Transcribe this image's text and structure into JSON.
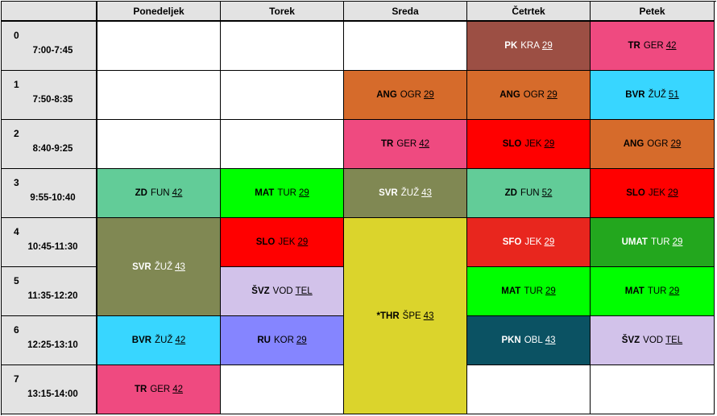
{
  "days": [
    "Ponedeljek",
    "Torek",
    "Sreda",
    "Četrtek",
    "Petek"
  ],
  "periods": [
    {
      "num": "0",
      "time": "7:00-7:45"
    },
    {
      "num": "1",
      "time": "7:50-8:35"
    },
    {
      "num": "2",
      "time": "8:40-9:25"
    },
    {
      "num": "3",
      "time": "9:55-10:40"
    },
    {
      "num": "4",
      "time": "10:45-11:30"
    },
    {
      "num": "5",
      "time": "11:35-12:20"
    },
    {
      "num": "6",
      "time": "12:25-13:10"
    },
    {
      "num": "7",
      "time": "13:15-14:00"
    }
  ],
  "lessons": [
    {
      "subject": "PK",
      "teacher": "KRA",
      "room": "29",
      "day": 3,
      "start": 0,
      "span": 1,
      "color": "#9c4f44",
      "text": "light"
    },
    {
      "subject": "TR",
      "teacher": "GER",
      "room": "42",
      "day": 4,
      "start": 0,
      "span": 1,
      "color": "#ef4a80",
      "text": "dark"
    },
    {
      "subject": "ANG",
      "teacher": "OGR",
      "room": "29",
      "day": 2,
      "start": 1,
      "span": 1,
      "color": "#d66b2b",
      "text": "dark"
    },
    {
      "subject": "ANG",
      "teacher": "OGR",
      "room": "29",
      "day": 3,
      "start": 1,
      "span": 1,
      "color": "#d66b2b",
      "text": "dark"
    },
    {
      "subject": "BVR",
      "teacher": "ŽUŽ",
      "room": "51",
      "day": 4,
      "start": 1,
      "span": 1,
      "color": "#38d6ff",
      "text": "dark"
    },
    {
      "subject": "TR",
      "teacher": "GER",
      "room": "42",
      "day": 2,
      "start": 2,
      "span": 1,
      "color": "#ef4a80",
      "text": "dark"
    },
    {
      "subject": "SLO",
      "teacher": "JEK",
      "room": "29",
      "day": 3,
      "start": 2,
      "span": 1,
      "color": "#ff0000",
      "text": "dark"
    },
    {
      "subject": "ANG",
      "teacher": "OGR",
      "room": "29",
      "day": 4,
      "start": 2,
      "span": 1,
      "color": "#d66b2b",
      "text": "dark"
    },
    {
      "subject": "ZD",
      "teacher": "FUN",
      "room": "42",
      "day": 0,
      "start": 3,
      "span": 1,
      "color": "#62cc98",
      "text": "dark"
    },
    {
      "subject": "MAT",
      "teacher": "TUR",
      "room": "29",
      "day": 1,
      "start": 3,
      "span": 1,
      "color": "#00ff00",
      "text": "dark"
    },
    {
      "subject": "SVR",
      "teacher": "ŽUŽ",
      "room": "43",
      "day": 2,
      "start": 3,
      "span": 1,
      "color": "#808853",
      "text": "light"
    },
    {
      "subject": "ZD",
      "teacher": "FUN",
      "room": "52",
      "day": 3,
      "start": 3,
      "span": 1,
      "color": "#62cc98",
      "text": "dark"
    },
    {
      "subject": "SLO",
      "teacher": "JEK",
      "room": "29",
      "day": 4,
      "start": 3,
      "span": 1,
      "color": "#ff0000",
      "text": "dark"
    },
    {
      "subject": "SVR",
      "teacher": "ŽUŽ",
      "room": "43",
      "day": 0,
      "start": 4,
      "span": 2,
      "color": "#808853",
      "text": "light"
    },
    {
      "subject": "SLO",
      "teacher": "JEK",
      "room": "29",
      "day": 1,
      "start": 4,
      "span": 1,
      "color": "#ff0000",
      "text": "dark"
    },
    {
      "subject": "*THR",
      "teacher": "ŠPE",
      "room": "43",
      "day": 2,
      "start": 4,
      "span": 4,
      "color": "#dbd42c",
      "text": "dark"
    },
    {
      "subject": "SFO",
      "teacher": "JEK",
      "room": "29",
      "day": 3,
      "start": 4,
      "span": 1,
      "color": "#e8261e",
      "text": "light"
    },
    {
      "subject": "UMAT",
      "teacher": "TUR",
      "room": "29",
      "day": 4,
      "start": 4,
      "span": 1,
      "color": "#23a71e",
      "text": "light"
    },
    {
      "subject": "ŠVZ",
      "teacher": "VOD",
      "room": "TEL",
      "day": 1,
      "start": 5,
      "span": 1,
      "color": "#d2c2ea",
      "text": "dark"
    },
    {
      "subject": "MAT",
      "teacher": "TUR",
      "room": "29",
      "day": 3,
      "start": 5,
      "span": 1,
      "color": "#00ff00",
      "text": "dark"
    },
    {
      "subject": "MAT",
      "teacher": "TUR",
      "room": "29",
      "day": 4,
      "start": 5,
      "span": 1,
      "color": "#00ff00",
      "text": "dark"
    },
    {
      "subject": "BVR",
      "teacher": "ŽUŽ",
      "room": "42",
      "day": 0,
      "start": 6,
      "span": 1,
      "color": "#38d6ff",
      "text": "dark"
    },
    {
      "subject": "RU",
      "teacher": "KOR",
      "room": "29",
      "day": 1,
      "start": 6,
      "span": 1,
      "color": "#8585ff",
      "text": "dark"
    },
    {
      "subject": "PKN",
      "teacher": "OBL",
      "room": "43",
      "day": 3,
      "start": 6,
      "span": 1,
      "color": "#0b5263",
      "text": "light"
    },
    {
      "subject": "ŠVZ",
      "teacher": "VOD",
      "room": "TEL",
      "day": 4,
      "start": 6,
      "span": 1,
      "color": "#d2c2ea",
      "text": "dark"
    },
    {
      "subject": "TR",
      "teacher": "GER",
      "room": "42",
      "day": 0,
      "start": 7,
      "span": 1,
      "color": "#ef4a80",
      "text": "dark"
    }
  ]
}
